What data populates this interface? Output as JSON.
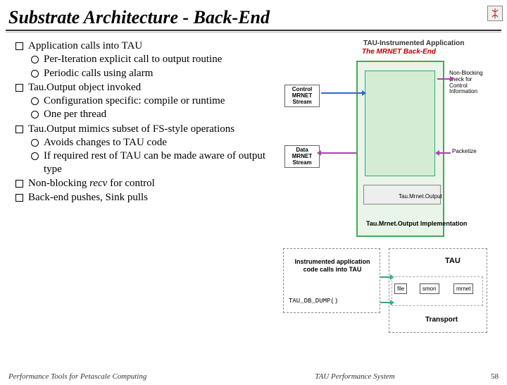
{
  "title": "Substrate Architecture - Back-End",
  "bullets": [
    {
      "text": "Application calls into TAU",
      "sub": [
        {
          "text": "Per-Iteration explicit call to output routine"
        },
        {
          "text": "Periodic calls using alarm"
        }
      ]
    },
    {
      "text": "Tau.Output object invoked",
      "sub": [
        {
          "text": "Configuration specific: compile or runtime"
        },
        {
          "text": "One per thread"
        }
      ]
    },
    {
      "text": "Tau.Output mimics subset of FS-style operations",
      "sub": [
        {
          "text": "Avoids changes to TAU code"
        },
        {
          "text": "If required rest of TAU can be made aware of output type"
        }
      ]
    },
    {
      "html": "Non-blocking <span class=\"italic\">recv</span> for control",
      "sub": []
    },
    {
      "text": "Back-end pushes, Sink pulls",
      "sub": []
    }
  ],
  "diagram": {
    "title1": "TAU-Instrumented Application",
    "title2": "The MRNET Back-End",
    "control_label": "Control\nMRNET\nStream",
    "data_label": "Data\nMRNET\nStream",
    "nbcheck": "Non-Blocking check for Control Information",
    "packetize": "Packetize",
    "tmo": "Tau.Mrnet.Output",
    "tmo_impl": "Tau.Mrnet.Output Implementation",
    "instrumented": "Instrumented application code calls into TAU",
    "dump": "TAU_DB_DUMP()",
    "tau": "TAU",
    "transport": "Transport",
    "files": [
      "file",
      "smon",
      "mrnet"
    ],
    "colors": {
      "app_border": "#4a5",
      "app_fill": "#e8f5e8",
      "purple": "#a4a",
      "blue": "#36c",
      "green": "#3a7",
      "dashed": "#888"
    }
  },
  "footer": {
    "left": "Performance Tools for Petascale Computing",
    "center": "TAU Performance System",
    "page": "58"
  }
}
